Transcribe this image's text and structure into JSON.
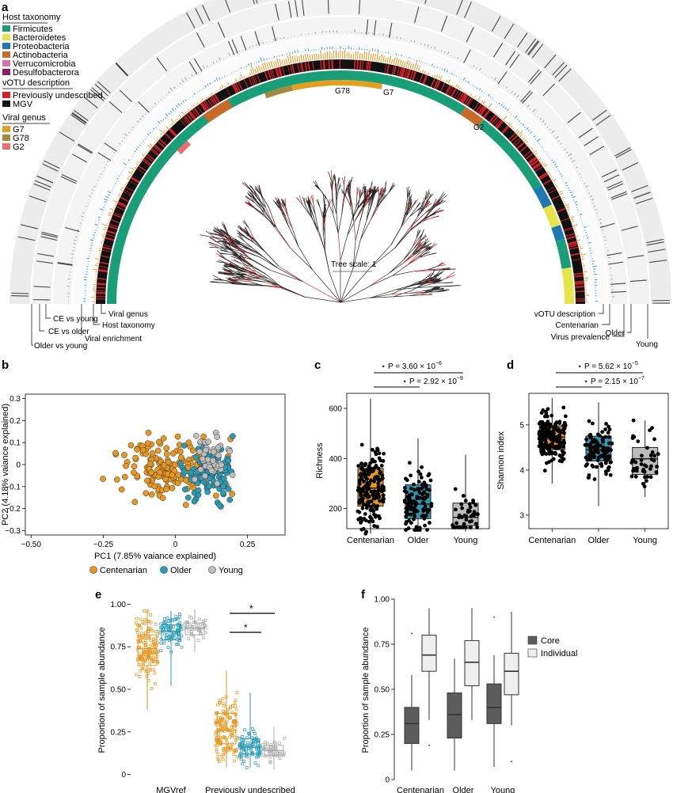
{
  "panels": {
    "a": "a",
    "b": "b",
    "c": "c",
    "d": "d",
    "e": "e",
    "f": "f"
  },
  "panel_a": {
    "legend": {
      "host_taxonomy": {
        "title": "Host taxonomy",
        "items": [
          {
            "label": "Firmicutes",
            "color": "#1a9e77"
          },
          {
            "label": "Bacteroidetes",
            "color": "#e6e44c"
          },
          {
            "label": "Proteobacteria",
            "color": "#1f77b4"
          },
          {
            "label": "Actinobacteria",
            "color": "#c86b2a"
          },
          {
            "label": "Verrucomicrobia",
            "color": "#d873b0"
          },
          {
            "label": "Desulfobacterora",
            "color": "#8b1a6b"
          }
        ]
      },
      "votu": {
        "title": "vOTU description",
        "items": [
          {
            "label": "Previously undescribed",
            "color": "#d62027"
          },
          {
            "label": "MGV",
            "color": "#111111"
          }
        ]
      },
      "genus": {
        "title": "Viral genus",
        "items": [
          {
            "label": "G7",
            "color": "#e3a020"
          },
          {
            "label": "G78",
            "color": "#a58a3d"
          },
          {
            "label": "G2",
            "color": "#ee6b6e"
          }
        ]
      }
    },
    "tree_scale": "Tree scale: 1",
    "genus_labels": {
      "g78": "G78",
      "g7": "G7",
      "g2": "G2"
    },
    "ring_labels_left": {
      "older_vs_young": "Older vs young",
      "ce_vs_older": "CE vs older",
      "ce_vs_young": "CE vs young",
      "viral_enrichment": "Viral enrichment",
      "host_taxonomy": "Host taxonomy",
      "viral_genus": "Viral genus"
    },
    "ring_labels_right": {
      "votu": "vOTU description",
      "centenarian": "Centenarian",
      "virus_prevalence": "Virus prevalence",
      "older": "Older",
      "young": "Young"
    }
  },
  "colors": {
    "centenarian": "#e8961e",
    "older": "#2b9bb5",
    "young": "#bdbdbd",
    "core": "#5c5c5c",
    "individual": "#efefef",
    "mgv": "#111111",
    "undescribed": "#d62027"
  },
  "chart_data": [
    {
      "panel": "b",
      "type": "scatter",
      "xlabel": "PC1 (7.85% vaiance explained)",
      "ylabel": "PC2 (4.18% vaiance explained)",
      "xlim": [
        -0.52,
        0.38
      ],
      "ylim": [
        -0.32,
        0.32
      ],
      "xticks": [
        -0.5,
        -0.25,
        0,
        0.25
      ],
      "xtick_labels": [
        "−0.50",
        "−0.25",
        "0",
        "0.25"
      ],
      "yticks": [
        -0.3,
        -0.2,
        -0.1,
        0,
        0.1,
        0.2,
        0.3
      ],
      "ytick_labels": [
        "−0.3",
        "−0.2",
        "−0.1",
        "0",
        "0.1",
        "0.2",
        "0.3"
      ],
      "legend": [
        "Centenarian",
        "Older",
        "Young"
      ],
      "series": [
        {
          "name": "Centenarian",
          "n": 190,
          "center": [
            0.0,
            -0.02
          ],
          "sd": [
            0.17,
            0.11
          ]
        },
        {
          "name": "Older",
          "n": 110,
          "center": [
            0.12,
            -0.05
          ],
          "sd": [
            0.08,
            0.11
          ]
        },
        {
          "name": "Young",
          "n": 45,
          "center": [
            0.13,
            0.04
          ],
          "sd": [
            0.06,
            0.1
          ]
        }
      ]
    },
    {
      "panel": "c",
      "type": "box",
      "ylabel": "Richness",
      "categories": [
        "Centenarian",
        "Older",
        "Young"
      ],
      "ylim": [
        120,
        660
      ],
      "yticks": [
        200,
        400,
        600
      ],
      "boxes": [
        {
          "name": "Centenarian",
          "q1": 210,
          "median": 282,
          "q3": 360,
          "whislo": 100,
          "whishi": 640,
          "n": 190
        },
        {
          "name": "Older",
          "q1": 160,
          "median": 218,
          "q3": 295,
          "whislo": 115,
          "whishi": 480,
          "n": 110
        },
        {
          "name": "Young",
          "q1": 132,
          "median": 165,
          "q3": 222,
          "whislo": 125,
          "whishi": 415,
          "n": 45
        }
      ],
      "signif": [
        {
          "from": 0,
          "to": 2,
          "label": "⋆ P = 3.60 × 10",
          "exp": "−6"
        },
        {
          "from": 0,
          "to": 1,
          "label": "⋆ P = 2.92 × 10",
          "exp": "−9"
        }
      ]
    },
    {
      "panel": "d",
      "type": "box",
      "ylabel": "Shannon index",
      "categories": [
        "Centenarian",
        "Older",
        "Young"
      ],
      "ylim": [
        2.7,
        5.7
      ],
      "yticks": [
        3,
        4,
        5
      ],
      "boxes": [
        {
          "name": "Centenarian",
          "q1": 4.45,
          "median": 4.73,
          "q3": 4.98,
          "whislo": 3.7,
          "whishi": 5.6,
          "n": 190
        },
        {
          "name": "Older",
          "q1": 4.2,
          "median": 4.45,
          "q3": 4.75,
          "whislo": 3.2,
          "whishi": 5.5,
          "n": 110
        },
        {
          "name": "Young",
          "q1": 3.9,
          "median": 4.25,
          "q3": 4.5,
          "whislo": 3.4,
          "whishi": 5.1,
          "n": 45
        }
      ],
      "signif": [
        {
          "from": 0,
          "to": 2,
          "label": "⋆ P = 5.62 × 10",
          "exp": "−5"
        },
        {
          "from": 0,
          "to": 1,
          "label": "⋆ P = 2.15 × 10",
          "exp": "−7"
        }
      ]
    },
    {
      "panel": "e",
      "type": "box",
      "ylabel": "Proportion of sample abundance",
      "categories": [
        "MGVref",
        "Previously undescribed"
      ],
      "ylim": [
        -0.03,
        1.03
      ],
      "yticks": [
        0,
        0.25,
        0.5,
        0.75,
        1.0
      ],
      "ytick_labels": [
        "0",
        "0.25",
        "0.50",
        "0.75",
        "1.00"
      ],
      "groups": [
        {
          "category": "MGVref",
          "boxes": [
            {
              "name": "Centenarian",
              "q1": 0.64,
              "median": 0.74,
              "q3": 0.82,
              "whislo": 0.38,
              "whishi": 0.96
            },
            {
              "name": "Older",
              "q1": 0.79,
              "median": 0.84,
              "q3": 0.88,
              "whislo": 0.52,
              "whishi": 0.96
            },
            {
              "name": "Young",
              "q1": 0.82,
              "median": 0.86,
              "q3": 0.89,
              "whislo": 0.72,
              "whishi": 0.97
            }
          ]
        },
        {
          "category": "Previously undescribed",
          "boxes": [
            {
              "name": "Centenarian",
              "q1": 0.18,
              "median": 0.26,
              "q3": 0.36,
              "whislo": 0.04,
              "whishi": 0.61
            },
            {
              "name": "Older",
              "q1": 0.12,
              "median": 0.16,
              "q3": 0.21,
              "whislo": 0.04,
              "whishi": 0.48
            },
            {
              "name": "Young",
              "q1": 0.11,
              "median": 0.14,
              "q3": 0.17,
              "whislo": 0.03,
              "whishi": 0.28
            }
          ]
        }
      ],
      "signif": [
        {
          "label": "*"
        },
        {
          "label": "*"
        }
      ]
    },
    {
      "panel": "f",
      "type": "box",
      "ylabel": "Proportion of sample abundance",
      "categories": [
        "Centenarian",
        "Older",
        "Young"
      ],
      "ylim": [
        0,
        1.0
      ],
      "yticks": [
        0,
        0.25,
        0.5,
        0.75,
        1.0
      ],
      "ytick_labels": [
        "0",
        "0.25",
        "0.50",
        "0.75",
        "1.00"
      ],
      "legend": [
        "Core",
        "Individual"
      ],
      "groups": [
        {
          "category": "Centenarian",
          "boxes": [
            {
              "name": "Core",
              "q1": 0.2,
              "median": 0.31,
              "q3": 0.4,
              "whislo": 0.05,
              "whishi": 0.58,
              "outliers": [
                0.81
              ]
            },
            {
              "name": "Individual",
              "q1": 0.6,
              "median": 0.69,
              "q3": 0.8,
              "whislo": 0.33,
              "whishi": 0.95,
              "outliers": [
                0.19
              ]
            }
          ]
        },
        {
          "category": "Older",
          "boxes": [
            {
              "name": "Core",
              "q1": 0.23,
              "median": 0.36,
              "q3": 0.48,
              "whislo": 0.05,
              "whishi": 0.67
            },
            {
              "name": "Individual",
              "q1": 0.52,
              "median": 0.65,
              "q3": 0.77,
              "whislo": 0.33,
              "whishi": 0.95
            }
          ]
        },
        {
          "category": "Young",
          "boxes": [
            {
              "name": "Core",
              "q1": 0.31,
              "median": 0.4,
              "q3": 0.53,
              "whislo": 0.07,
              "whishi": 0.69,
              "outliers": [
                0.9
              ]
            },
            {
              "name": "Individual",
              "q1": 0.47,
              "median": 0.6,
              "q3": 0.7,
              "whislo": 0.3,
              "whishi": 0.93,
              "outliers": [
                0.1
              ]
            }
          ]
        }
      ]
    }
  ]
}
